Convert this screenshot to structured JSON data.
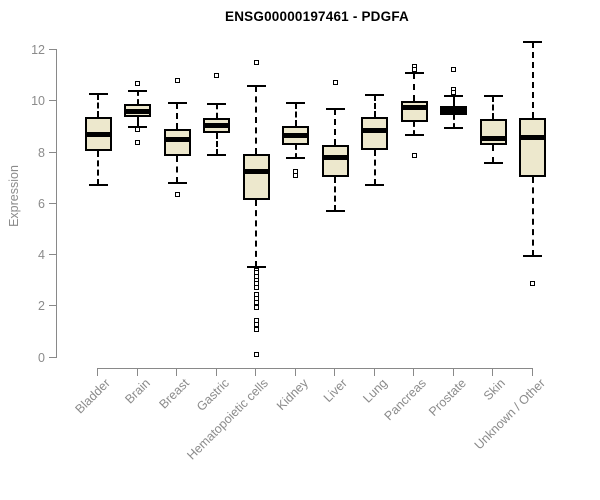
{
  "chart_data": {
    "type": "box",
    "title": "ENSG00000197461 - PDGFA",
    "ylabel": "Expression",
    "xlabel": "",
    "ylim": [
      0,
      12.4
    ],
    "yticks": [
      0,
      2,
      4,
      6,
      8,
      10,
      12
    ],
    "grid": false,
    "legend": "none",
    "categories": [
      "Bladder",
      "Brain",
      "Breast",
      "Gastric",
      "Hematopoietic cells",
      "Kidney",
      "Liver",
      "Lung",
      "Pancreas",
      "Prostate",
      "Skin",
      "Unknown / Other"
    ],
    "series": [
      {
        "name": "Bladder",
        "low": 6.75,
        "q1": 8.05,
        "median": 8.7,
        "q3": 9.4,
        "high": 10.3,
        "outliers": []
      },
      {
        "name": "Brain",
        "low": 9.0,
        "q1": 9.4,
        "median": 9.6,
        "q3": 9.9,
        "high": 10.4,
        "outliers": [
          10.7,
          8.9,
          8.4
        ]
      },
      {
        "name": "Breast",
        "low": 6.8,
        "q1": 7.85,
        "median": 8.5,
        "q3": 8.9,
        "high": 9.95,
        "outliers": [
          10.8,
          6.35
        ]
      },
      {
        "name": "Gastric",
        "low": 7.9,
        "q1": 8.75,
        "median": 9.05,
        "q3": 9.35,
        "high": 9.9,
        "outliers": [
          11.0
        ]
      },
      {
        "name": "Hematopoietic cells",
        "low": 3.55,
        "q1": 6.15,
        "median": 7.25,
        "q3": 7.95,
        "high": 10.6,
        "outliers": [
          11.5,
          3.4,
          3.3,
          3.15,
          3.0,
          2.9,
          2.75,
          2.45,
          2.3,
          2.15,
          1.95,
          1.45,
          1.3,
          1.1,
          0.1
        ]
      },
      {
        "name": "Kidney",
        "low": 7.8,
        "q1": 8.3,
        "median": 8.65,
        "q3": 9.05,
        "high": 9.95,
        "outliers": [
          7.25,
          7.1
        ]
      },
      {
        "name": "Liver",
        "low": 5.7,
        "q1": 7.05,
        "median": 7.8,
        "q3": 8.3,
        "high": 9.7,
        "outliers": [
          10.75
        ]
      },
      {
        "name": "Lung",
        "low": 6.75,
        "q1": 8.1,
        "median": 8.85,
        "q3": 9.4,
        "high": 10.25,
        "outliers": []
      },
      {
        "name": "Pancreas",
        "low": 8.7,
        "q1": 9.2,
        "median": 9.75,
        "q3": 10.0,
        "high": 11.1,
        "outliers": [
          11.35,
          11.25,
          7.9
        ]
      },
      {
        "name": "Prostate",
        "low": 8.95,
        "q1": 9.45,
        "median": 9.65,
        "q3": 9.8,
        "high": 10.2,
        "outliers": [
          11.25,
          10.45,
          10.35
        ]
      },
      {
        "name": "Skin",
        "low": 7.6,
        "q1": 8.3,
        "median": 8.55,
        "q3": 9.3,
        "high": 10.2,
        "outliers": []
      },
      {
        "name": "Unknown / Other",
        "low": 3.95,
        "q1": 7.05,
        "median": 8.6,
        "q3": 9.35,
        "high": 12.3,
        "outliers": [
          2.9
        ]
      }
    ],
    "colors": {
      "box_fill": "#EDE8CD",
      "box_border": "#000000",
      "median": "#000000",
      "whisker": "#000000",
      "axis": "#898989",
      "tick_label": "#8B8B8B",
      "title": "#000000",
      "background": "#FFFFFF"
    }
  }
}
